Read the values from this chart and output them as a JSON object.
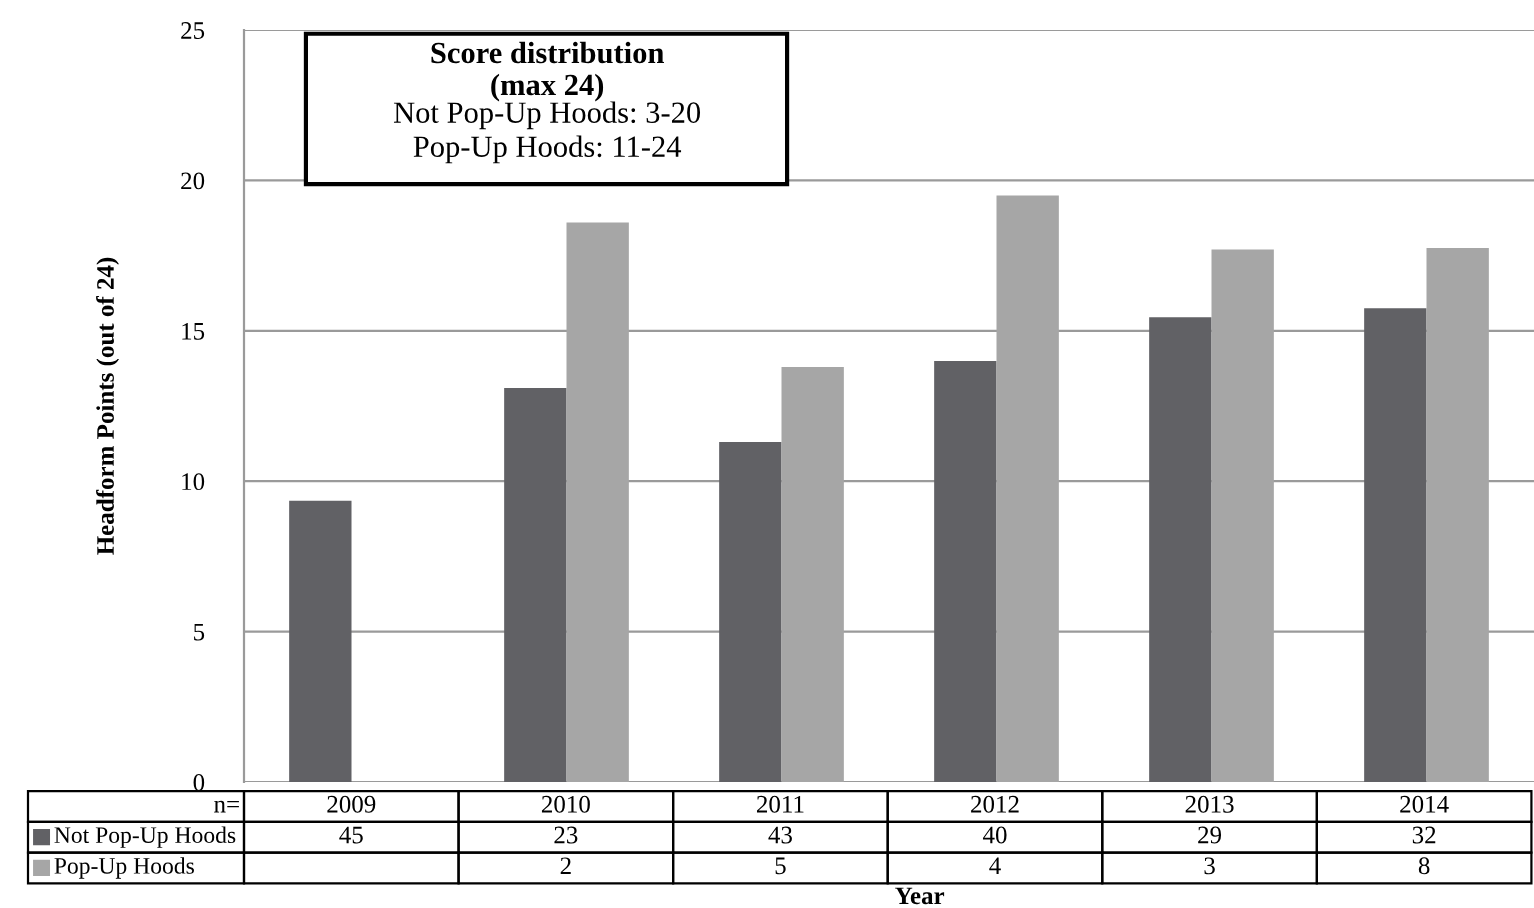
{
  "chart_data": {
    "type": "bar",
    "xlabel": "Year",
    "ylabel": "Headform Points (out of 24)",
    "categories": [
      "2009",
      "2010",
      "2011",
      "2012",
      "2013",
      "2014"
    ],
    "series": [
      {
        "name": "Not Pop-Up Hoods",
        "color": "#616165",
        "values": [
          9.35,
          13.1,
          11.3,
          14.0,
          15.45,
          15.75
        ]
      },
      {
        "name": "Pop-Up Hoods",
        "color": "#a6a6a6",
        "values": [
          null,
          18.6,
          13.8,
          19.5,
          17.7,
          17.75
        ]
      }
    ],
    "ylim": [
      0,
      25
    ],
    "yticks": [
      0,
      5,
      10,
      15,
      20,
      25
    ],
    "grid": "y",
    "legend": "bottom",
    "annotations": [
      "Score distribution\n(max 24)",
      "Not Pop-Up Hoods: 3-20\nPop-Up Hoods: 11-24",
      "n=",
      "45",
      "23",
      "43",
      "40",
      "29",
      "32",
      "2",
      "5",
      "4",
      "3",
      "8"
    ]
  }
}
